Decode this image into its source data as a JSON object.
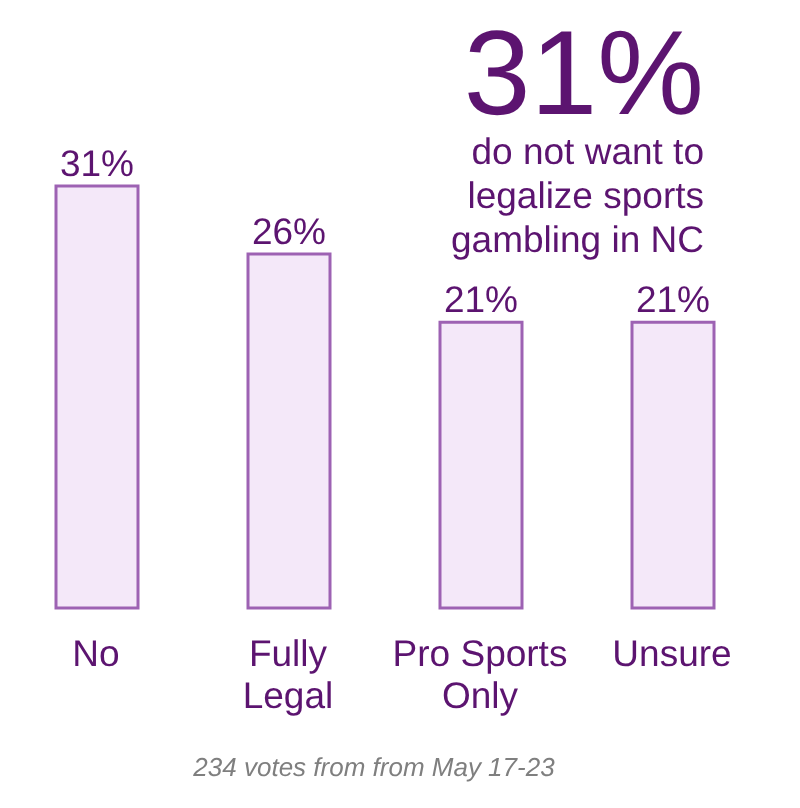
{
  "chart_data": {
    "type": "bar",
    "title": "31%",
    "subtitle": "do not want to legalize sports gambling in NC",
    "categories": [
      "No",
      "Fully Legal",
      "Pro Sports Only",
      "Unsure"
    ],
    "values": [
      31,
      26,
      21,
      21
    ],
    "value_labels": [
      "31%",
      "26%",
      "21%",
      "21%"
    ],
    "color": "#f4e8f9",
    "tick_labels": "x",
    "annotations": [
      "234 votes from from May 17-23"
    ]
  }
}
